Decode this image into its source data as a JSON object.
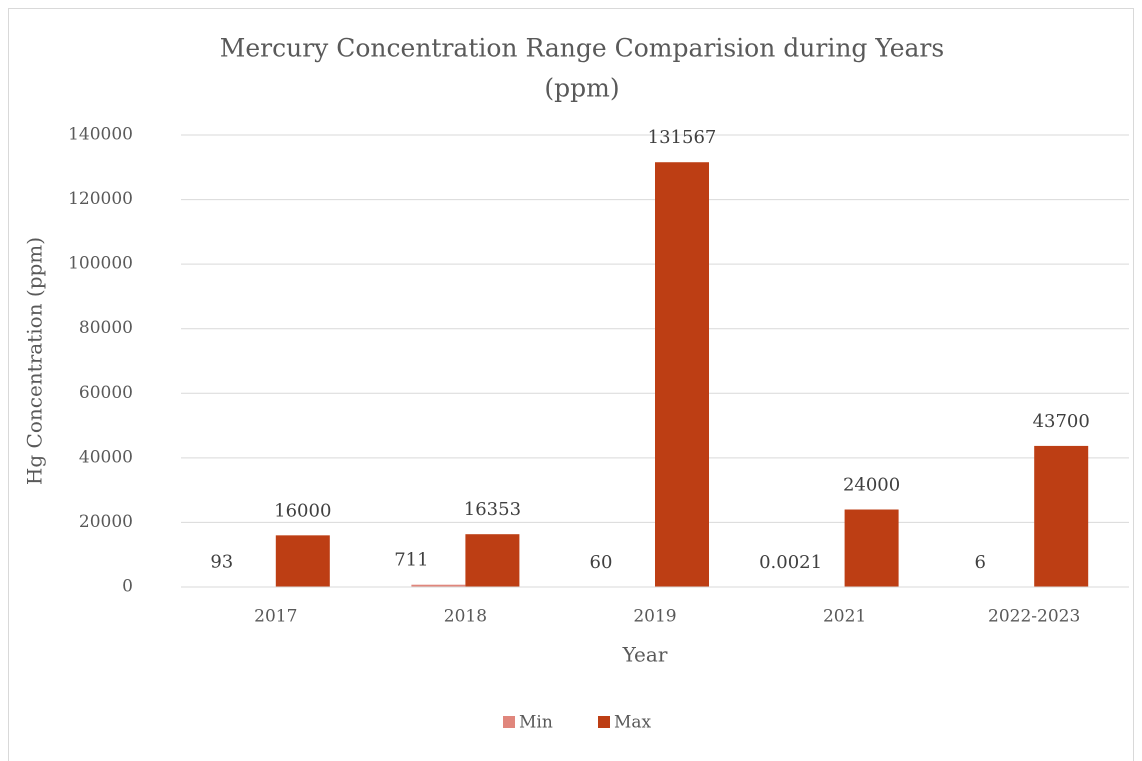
{
  "chart_data": {
    "type": "bar",
    "title": "Mercury Concentration Range Comparision during Years",
    "subtitle": "(ppm)",
    "x_label": "Year",
    "y_label": "Hg Concentration (ppm)",
    "categories": [
      "2017",
      "2018",
      "2019",
      "2021",
      "2022-2023"
    ],
    "series": [
      {
        "name": "Min",
        "color": "#e0867c",
        "values": [
          93,
          711,
          60,
          0.0021,
          6
        ]
      },
      {
        "name": "Max",
        "color": "#bd3e14",
        "values": [
          16000,
          16353,
          131567,
          24000,
          43700
        ]
      }
    ],
    "ylim": [
      0,
      140000
    ],
    "yticks": [
      0,
      20000,
      40000,
      60000,
      80000,
      100000,
      120000,
      140000
    ],
    "grid": true,
    "legend": "bottom"
  }
}
